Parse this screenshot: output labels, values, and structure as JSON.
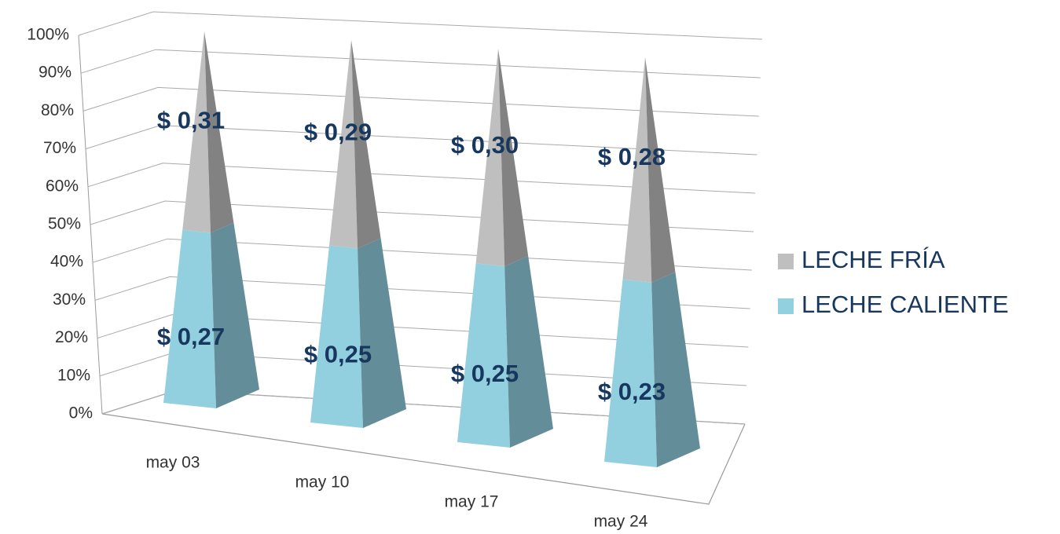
{
  "chart_data": {
    "type": "pyramid",
    "categories": [
      "may 03",
      "may 10",
      "may 17",
      "may 24"
    ],
    "series": [
      {
        "name": "LECHE CALIENTE",
        "color": "#92d0e0",
        "values": [
          0.27,
          0.25,
          0.25,
          0.23
        ],
        "value_labels": [
          "$ 0,27",
          "$ 0,25",
          "$ 0,25",
          "$ 0,23"
        ]
      },
      {
        "name": "LECHE FRÍA",
        "color": "#bfbfbf",
        "values": [
          0.31,
          0.29,
          0.3,
          0.28
        ],
        "value_labels": [
          "$ 0,31",
          "$ 0,29",
          "$ 0,30",
          "$ 0,28"
        ]
      }
    ],
    "stacked": "percent",
    "ylim": [
      0,
      100
    ],
    "yticks": [
      {
        "value": 0,
        "label": "0%"
      },
      {
        "value": 10,
        "label": "10%"
      },
      {
        "value": 20,
        "label": "20%"
      },
      {
        "value": 30,
        "label": "30%"
      },
      {
        "value": 40,
        "label": "40%"
      },
      {
        "value": 50,
        "label": "50%"
      },
      {
        "value": 60,
        "label": "60%"
      },
      {
        "value": 70,
        "label": "70%"
      },
      {
        "value": 80,
        "label": "80%"
      },
      {
        "value": 90,
        "label": "90%"
      },
      {
        "value": 100,
        "label": "100%"
      }
    ],
    "grid": true,
    "legend": "right"
  }
}
